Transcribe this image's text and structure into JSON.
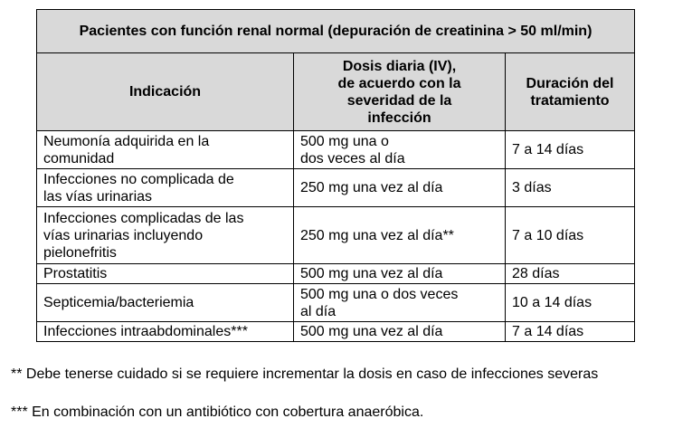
{
  "table": {
    "title": "Pacientes con función renal normal (depuración de creatinina > 50 ml/min)",
    "headers": {
      "indicacion": "Indicación",
      "dosis": "Dosis diaria (IV),\nde acuerdo con la\nseveridad de la\ninfección",
      "duracion": "Duración del\ntratamiento"
    },
    "rows": [
      {
        "indicacion": "Neumonía adquirida en la\ncomunidad",
        "dosis": "500 mg una o\ndos veces al día",
        "duracion": "7 a 14 días"
      },
      {
        "indicacion": "Infecciones no complicada de\nlas vías urinarias",
        "dosis": "250 mg una vez al día",
        "duracion": "3 días"
      },
      {
        "indicacion": "Infecciones complicadas de las\nvías urinarias incluyendo\npielonefritis",
        "dosis": "250 mg una vez al día**",
        "duracion": "7 a 10 días"
      },
      {
        "indicacion": "Prostatitis",
        "dosis": "500 mg una vez al día",
        "duracion": "28 días"
      },
      {
        "indicacion": "Septicemia/bacteriemia",
        "dosis": "500 mg una o dos veces\nal día",
        "duracion": "10 a 14 días"
      },
      {
        "indicacion": "Infecciones intraabdominales***",
        "dosis": "500 mg una vez al día",
        "duracion": "7 a 14 días"
      }
    ]
  },
  "footnotes": {
    "note_1": "** Debe tenerse cuidado si se requiere incrementar la dosis en caso de infecciones severas",
    "note_2": "*** En combinación con un antibiótico con cobertura anaeróbica."
  }
}
